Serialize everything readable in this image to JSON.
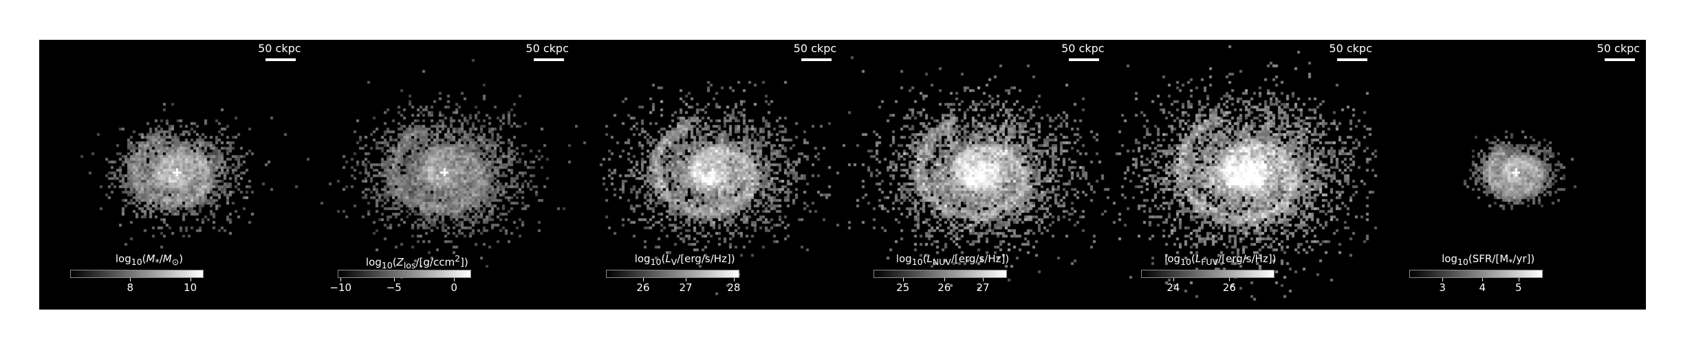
{
  "scale_bar_label": "50 ckpc",
  "panels": [
    {
      "colorbar": {
        "label": "log10(M*/M⊙)",
        "ticks": [
          "8",
          "10"
        ],
        "tick_positions": [
          0.45,
          0.9
        ]
      },
      "map": {
        "spread": 0.75,
        "density": 0.55,
        "bright": 0.55,
        "spiral": 0.35,
        "seed": 11
      }
    },
    {
      "colorbar": {
        "label": "log10(Zlos/[g/ccm²])",
        "ticks": [
          "−10",
          "−5",
          "0"
        ],
        "tick_positions": [
          0.02,
          0.42,
          0.87
        ]
      },
      "map": {
        "spread": 0.95,
        "density": 0.75,
        "bright": 0.45,
        "spiral": 0.3,
        "seed": 23
      }
    },
    {
      "colorbar": {
        "label": "log10(Lv/[erg/s/Hz])",
        "ticks": [
          "26",
          "27",
          "28"
        ],
        "tick_positions": [
          0.28,
          0.6,
          0.96
        ]
      },
      "map": {
        "spread": 1.05,
        "density": 0.7,
        "bright": 0.7,
        "spiral": 0.35,
        "seed": 37
      }
    },
    {
      "colorbar": {
        "label": "log10(LNUV/[erg/s/Hz])",
        "ticks": [
          "25",
          "26",
          "27"
        ],
        "tick_positions": [
          0.22,
          0.53,
          0.82
        ]
      },
      "map": {
        "spread": 1.15,
        "density": 0.78,
        "bright": 0.8,
        "spiral": 0.25,
        "seed": 41
      }
    },
    {
      "colorbar": {
        "label": "log10(LFUV/[erg/s/Hz])",
        "ticks": [
          "24",
          "26"
        ],
        "tick_positions": [
          0.24,
          0.66
        ]
      },
      "map": {
        "spread": 1.25,
        "density": 0.92,
        "bright": 0.85,
        "spiral": 0.2,
        "seed": 53
      }
    },
    {
      "colorbar": {
        "label": "log10(SFR/[M*/yr])",
        "ticks": [
          "3",
          "4",
          "5"
        ],
        "tick_positions": [
          0.25,
          0.55,
          0.82
        ]
      },
      "map": {
        "spread": 0.45,
        "density": 0.55,
        "bright": 0.45,
        "spiral": 0.6,
        "seed": 67
      }
    }
  ]
}
